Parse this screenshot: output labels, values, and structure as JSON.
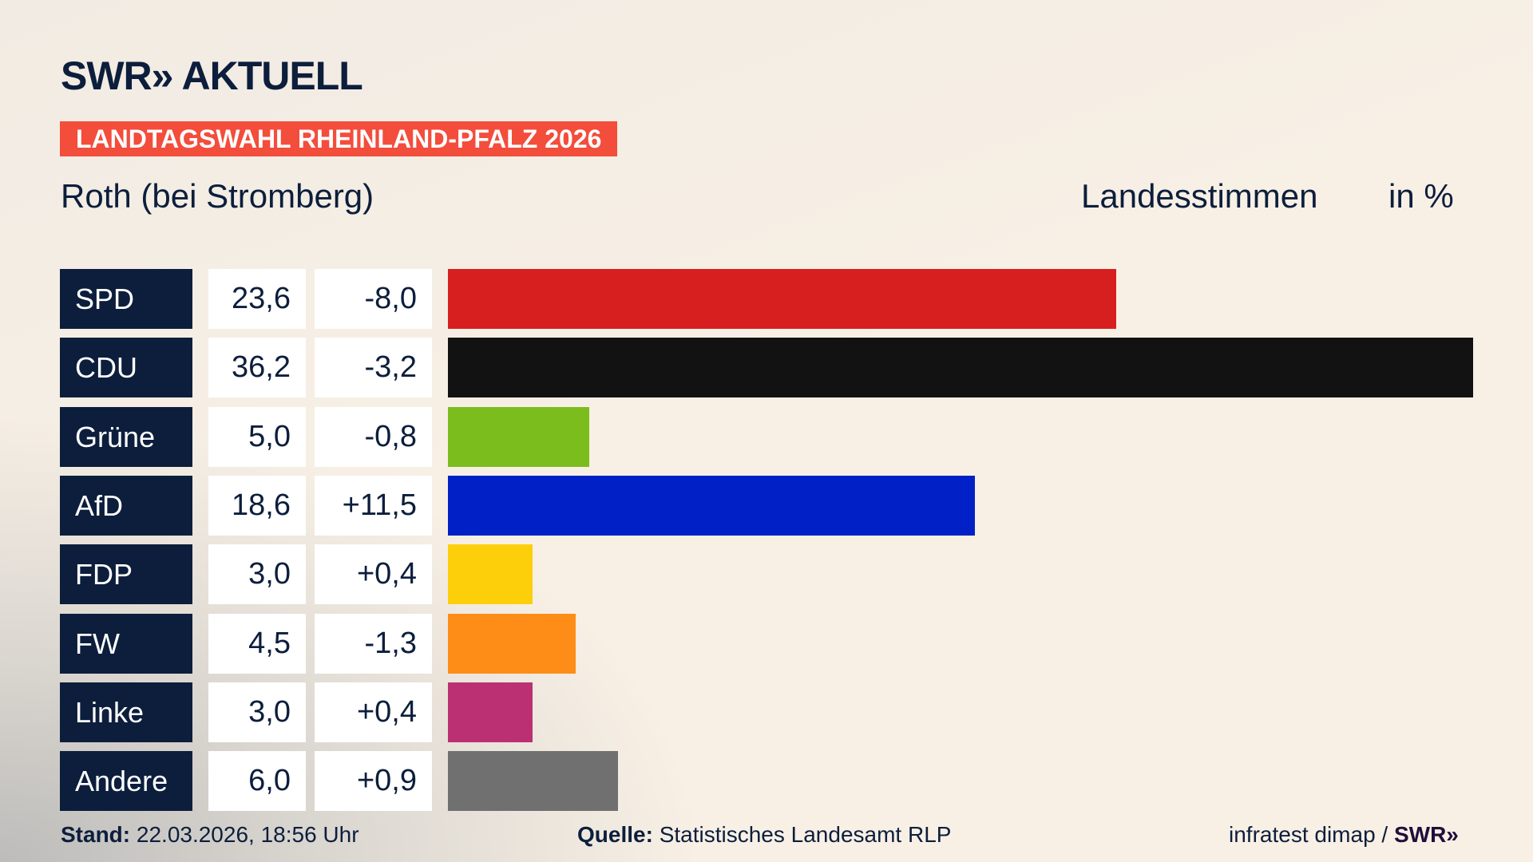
{
  "header": {
    "logo": "SWR» AKTUELL",
    "banner": "LANDTAGSWAHL RHEINLAND-PFALZ 2026",
    "subtitle": "Roth (bei Stromberg)",
    "measure": "Landesstimmen",
    "unit": "in %"
  },
  "chart_data": {
    "type": "bar",
    "orientation": "horizontal",
    "categories": [
      "SPD",
      "CDU",
      "Grüne",
      "AfD",
      "FDP",
      "FW",
      "Linke",
      "Andere"
    ],
    "values": [
      23.6,
      36.2,
      5.0,
      18.6,
      3.0,
      4.5,
      3.0,
      6.0
    ],
    "value_labels": [
      "23,6",
      "36,2",
      "5,0",
      "18,6",
      "3,0",
      "4,5",
      "3,0",
      "6,0"
    ],
    "diff_labels": [
      "-8,0",
      "-3,2",
      "-0,8",
      "+11,5",
      "+0,4",
      "-1,3",
      "+0,4",
      "+0,9"
    ],
    "colors": [
      "#d81f20",
      "#121212",
      "#7abd1d",
      "#0120c6",
      "#fdcf0b",
      "#fe8d18",
      "#bb3073",
      "#707070"
    ],
    "xlim": [
      0,
      36.2
    ]
  },
  "footer": {
    "stand_label": "Stand:",
    "stand_value": "22.03.2026, 18:56 Uhr",
    "source_label": "Quelle:",
    "source_value": "Statistisches Landesamt RLP",
    "credit": "infratest dimap / ",
    "credit_logo": "SWR»"
  }
}
